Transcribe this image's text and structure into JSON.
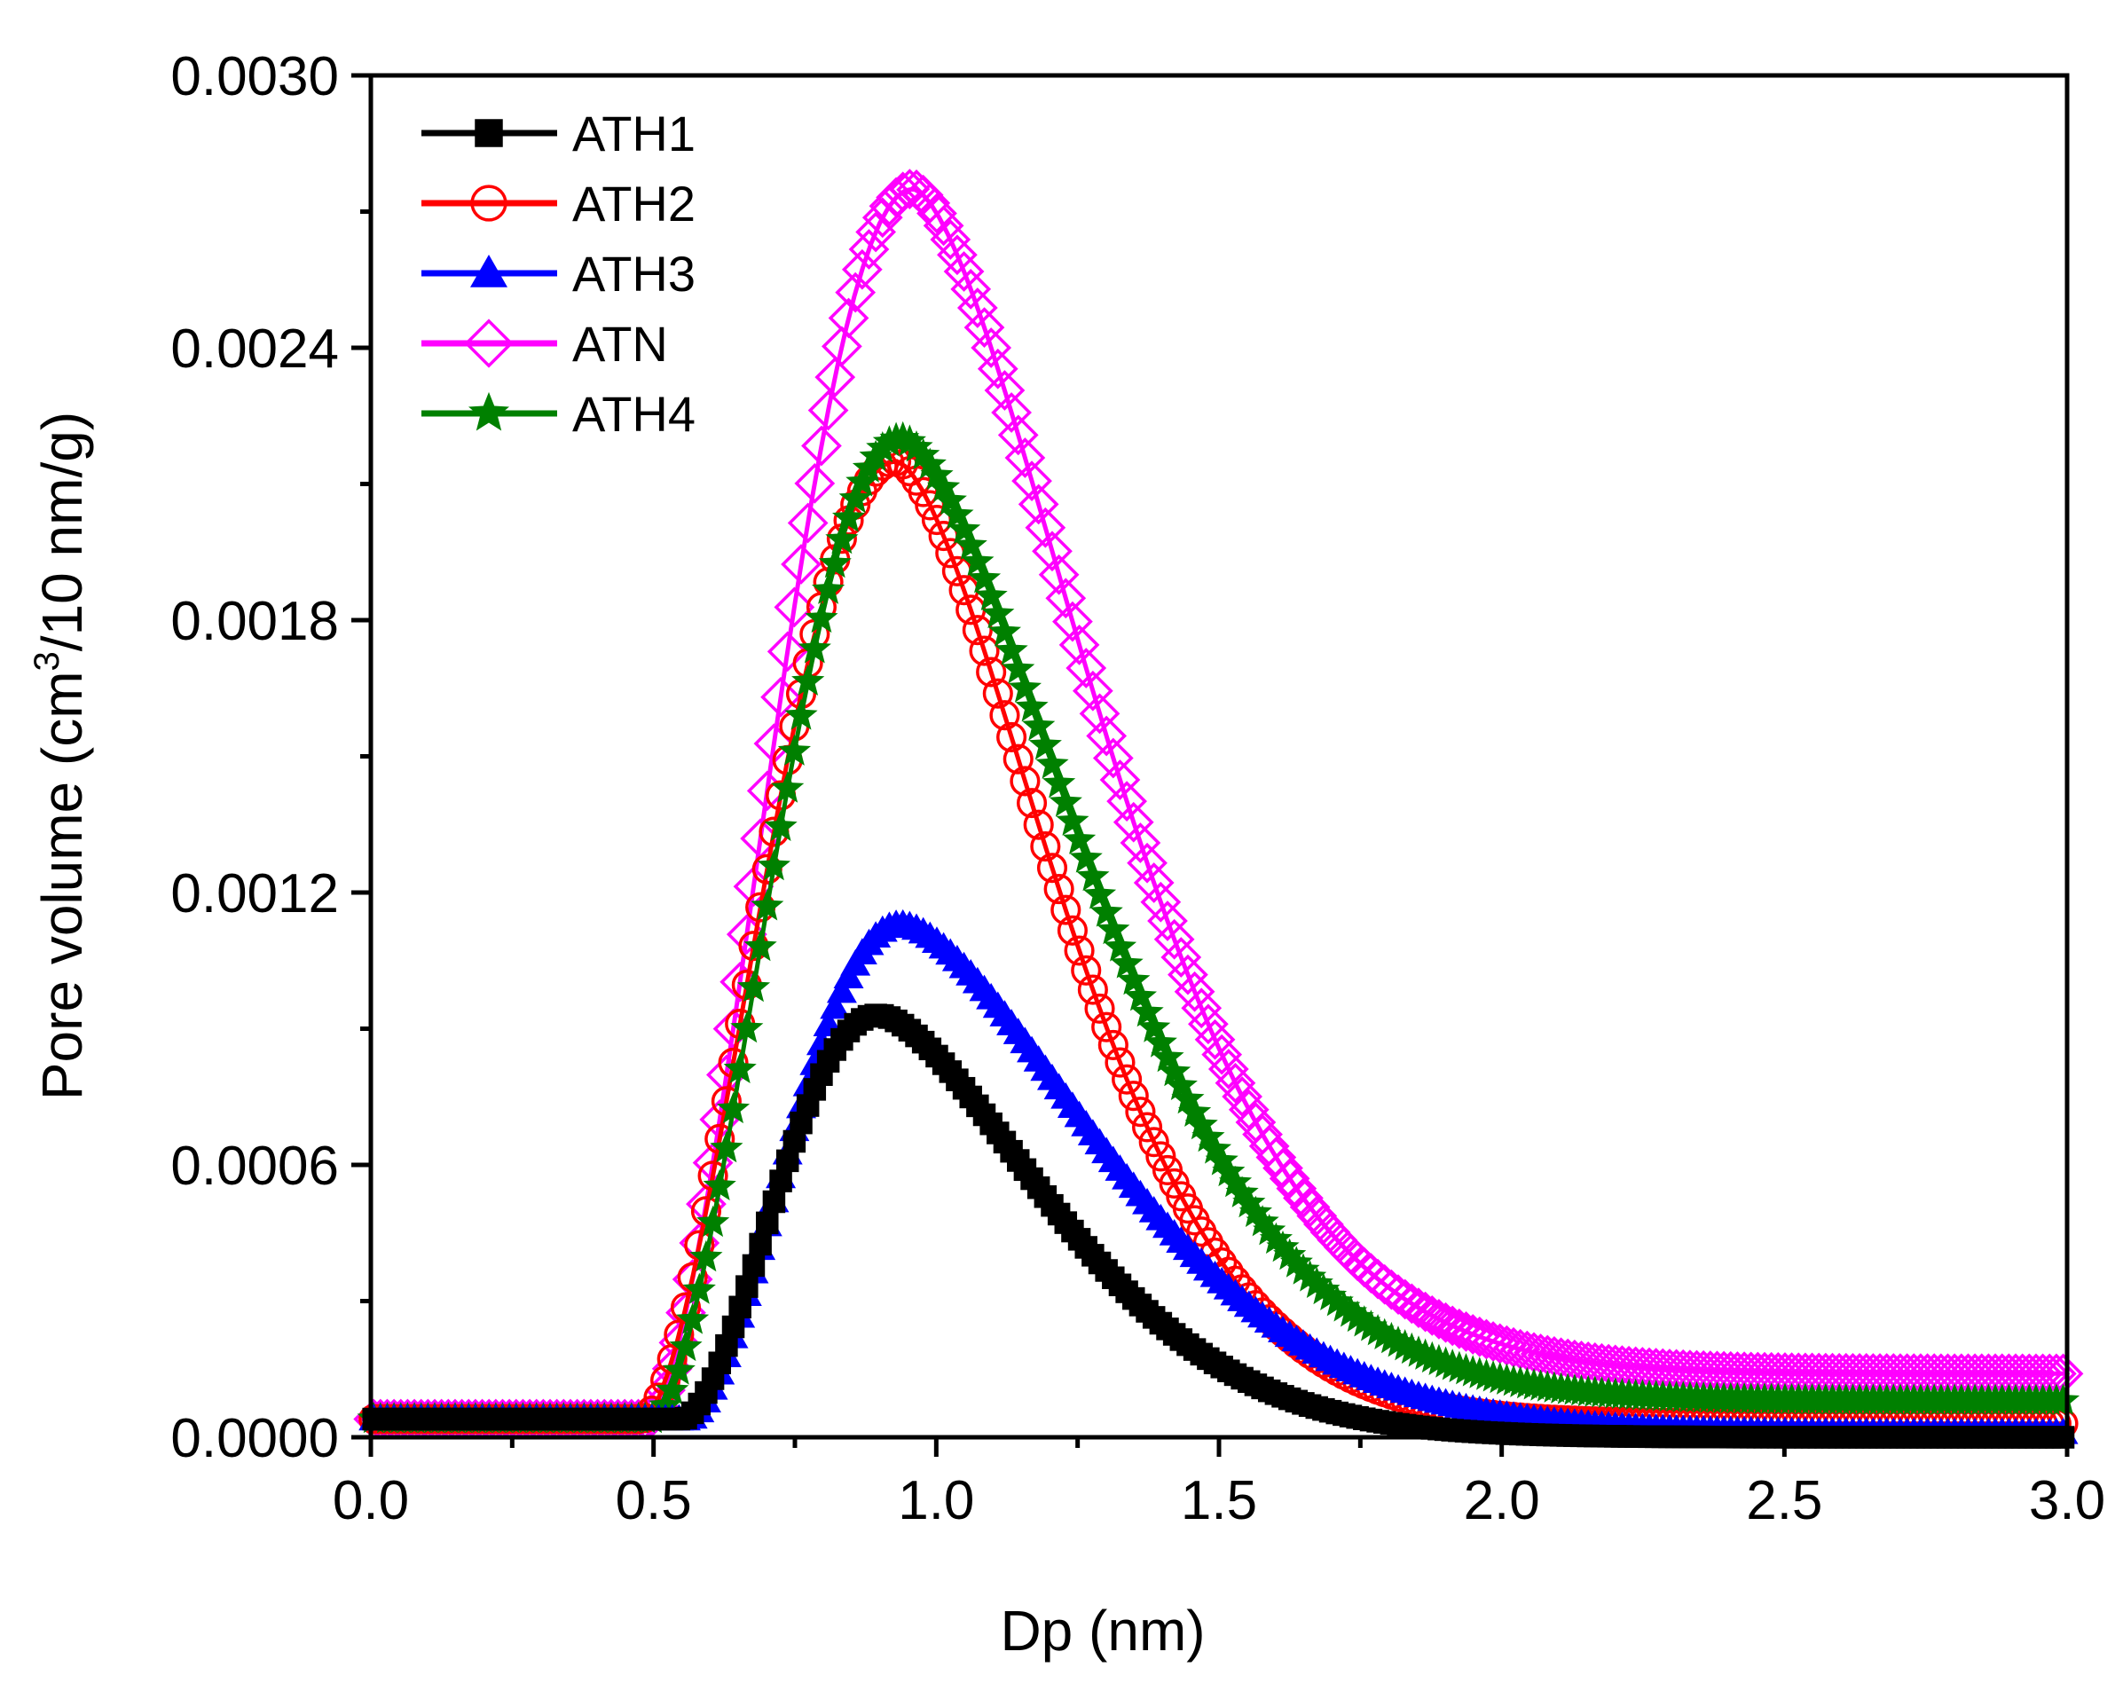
{
  "chart_data": {
    "type": "scatter",
    "title": "",
    "xlabel": "Dp (nm)",
    "ylabel_parts": {
      "pre": "Pore volume (cm",
      "sup": "3",
      "post": "/10 nm/g)"
    },
    "xlim": [
      0.0,
      3.0
    ],
    "ylim": [
      0.0,
      0.003
    ],
    "x_ticks": [
      0.0,
      0.5,
      1.0,
      1.5,
      2.0,
      2.5,
      3.0
    ],
    "x_tick_labels": [
      "0.0",
      "0.5",
      "1.0",
      "1.5",
      "2.0",
      "2.5",
      "3.0"
    ],
    "y_ticks": [
      0.0,
      0.0006,
      0.0012,
      0.0018,
      0.0024,
      0.003
    ],
    "y_tick_labels": [
      "0.0000",
      "0.0006",
      "0.0012",
      "0.0018",
      "0.0024",
      "0.0030"
    ],
    "legend_position": "top-left",
    "series": [
      {
        "name": "ATH1",
        "color": "#000000",
        "marker": "square-filled",
        "curve": {
          "onset": 0.55,
          "peak_x": 0.9,
          "peak_y": 0.00093,
          "rise_width": 0.15,
          "decay": 0.42,
          "baseline": 4e-05,
          "end_offset": 0.0
        }
      },
      {
        "name": "ATH2",
        "color": "#ff0000",
        "marker": "circle-open",
        "curve": {
          "onset": 0.48,
          "peak_x": 0.93,
          "peak_y": 0.00215,
          "rise_width": 0.2,
          "decay": 0.4,
          "baseline": 4e-05,
          "end_offset": 3e-05
        }
      },
      {
        "name": "ATH3",
        "color": "#0000ff",
        "marker": "triangle-filled",
        "curve": {
          "onset": 0.56,
          "peak_x": 0.94,
          "peak_y": 0.00113,
          "rise_width": 0.17,
          "decay": 0.5,
          "baseline": 4e-05,
          "end_offset": 1e-05
        }
      },
      {
        "name": "ATN",
        "color": "#ff00ff",
        "marker": "diamond-open",
        "curve": {
          "onset": 0.49,
          "peak_x": 0.96,
          "peak_y": 0.00275,
          "rise_width": 0.21,
          "decay": 0.46,
          "baseline": 4e-05,
          "end_offset": 0.00014
        }
      },
      {
        "name": "ATH4",
        "color": "#008000",
        "marker": "star-filled",
        "curve": {
          "onset": 0.5,
          "peak_x": 0.94,
          "peak_y": 0.0022,
          "rise_width": 0.2,
          "decay": 0.46,
          "baseline": 4e-05,
          "end_offset": 8e-05
        }
      }
    ]
  }
}
